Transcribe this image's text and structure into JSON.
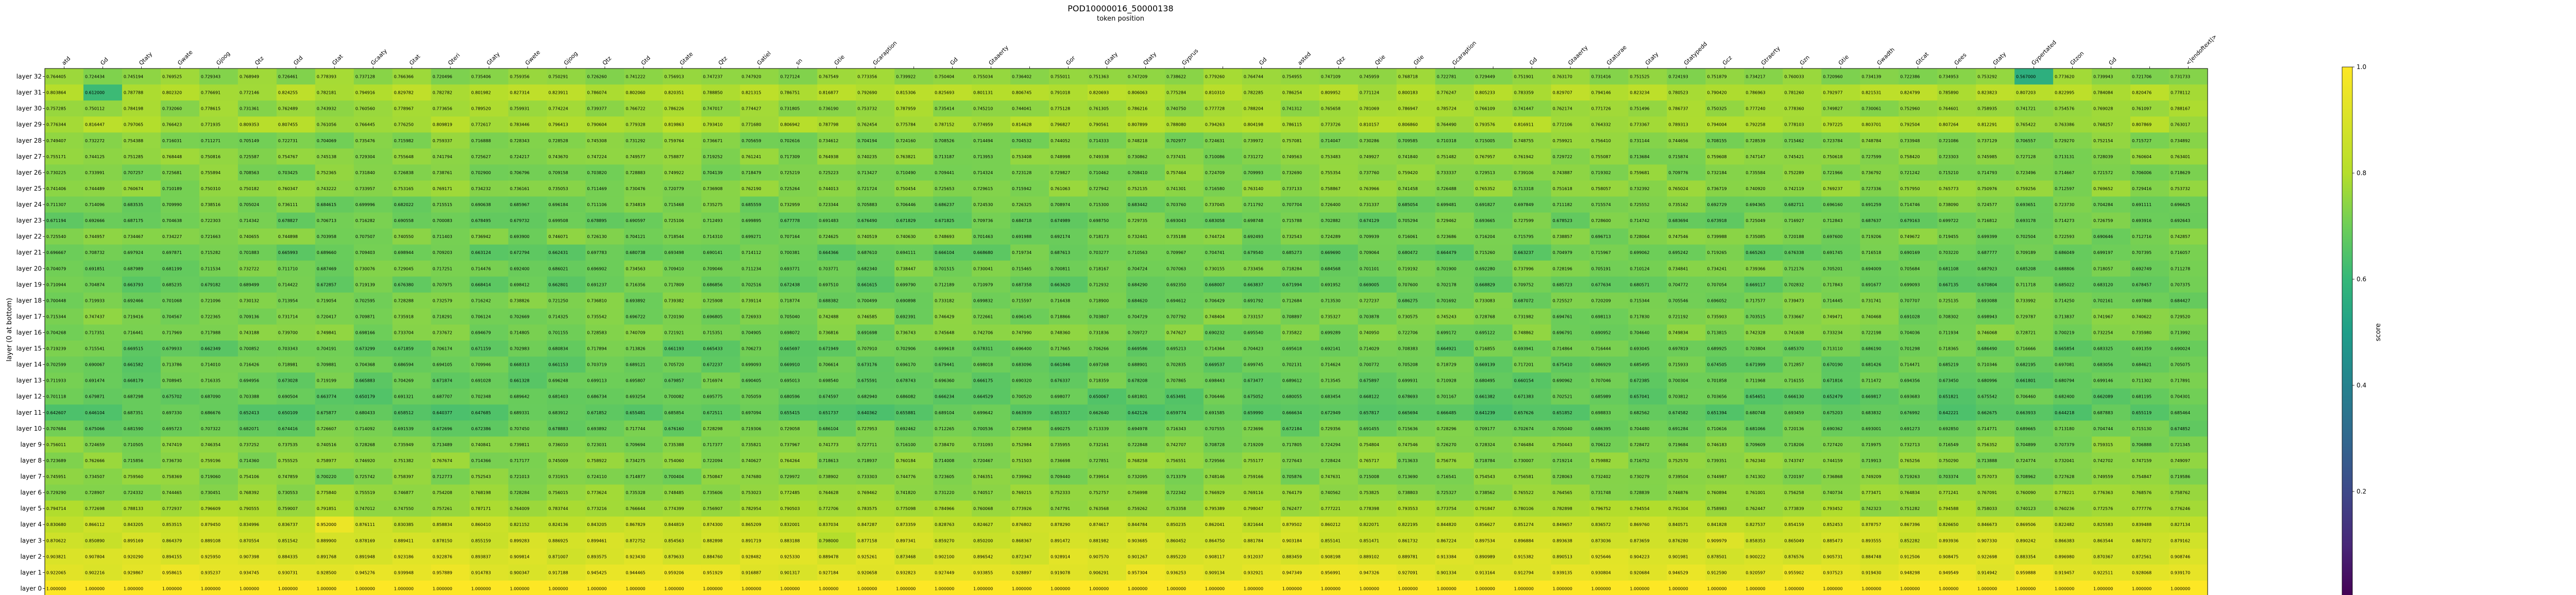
{
  "chart_data": {
    "type": "heatmap",
    "title": "POD10000016_50000138",
    "subtitle": "token position",
    "ylabel": "layer (0 at bottom)",
    "colorbar_label": "score",
    "colorbar_ticks": [
      "0.0",
      "0.2",
      "0.4",
      "0.6",
      "0.8",
      "1.0"
    ],
    "vlim": [
      0,
      1
    ],
    "colormap": "viridis",
    "x_tokens": [
      "atd",
      "Gd",
      "Qtaty",
      "Gwate",
      "Gjoog",
      "Qtz",
      "Gtd",
      "Gtat",
      "Gcaaty",
      "Gtat",
      "Qteri",
      "Gtaty",
      "Gwete",
      "Gjoog",
      "Qtz",
      "Gtd",
      "Gtate",
      "Qtz",
      "Gatiel",
      "sn",
      "Gtie",
      "Gcaraption",
      "",
      "Gd",
      "Gtaaerty",
      "",
      "Gor",
      "Gtaty",
      "Qtaty",
      "Gyprus",
      "",
      "Gd",
      "asted",
      "Qtz",
      "Qtie",
      "Gtie",
      "Gcaraption",
      "",
      "Gd",
      "Gtaaerty",
      "Gtaturae",
      "Gtaty",
      "Gtatypedd",
      "Gcz",
      "Gtraerty",
      "Gzn",
      "Gtie",
      "Gwadth",
      "Gtcat",
      "Gees",
      "Gtaty",
      "Gypertated",
      "Gtzon",
      "Gd",
      "",
      "<|endoftext|>"
    ],
    "layers": [
      "layer 32",
      "layer 31",
      "layer 30",
      "layer 29",
      "layer 28",
      "layer 27",
      "layer 26",
      "layer 25",
      "layer 24",
      "layer 23",
      "layer 22",
      "layer 21",
      "layer 20",
      "layer 19",
      "layer 18",
      "layer 17",
      "layer 16",
      "layer 15",
      "layer 14",
      "layer 13",
      "layer 12",
      "layer 11",
      "layer 10",
      "layer 9",
      "layer 8",
      "layer 7",
      "layer 6",
      "layer 5",
      "layer 4",
      "layer 3",
      "layer 2",
      "layer 1",
      "layer 0"
    ],
    "row_base": [
      0.75,
      0.8,
      0.76,
      0.79,
      0.73,
      0.74,
      0.73,
      0.74,
      0.71,
      0.7,
      0.72,
      0.69,
      0.71,
      0.69,
      0.71,
      0.72,
      0.72,
      0.69,
      0.69,
      0.69,
      0.68,
      0.67,
      0.7,
      0.73,
      0.74,
      0.73,
      0.75,
      0.77,
      0.85,
      0.88,
      0.9,
      0.93,
      1.0
    ],
    "highlighted_cells": [
      {
        "layer": "layer 32",
        "token_index": 51,
        "value": 0.567
      },
      {
        "layer": "layer 31",
        "token_index": 1,
        "value": 0.612
      },
      {
        "layer": "layer 3",
        "token_index": 20,
        "value": 0.798
      },
      {
        "layer": "layer 4",
        "token_index": 7,
        "value": 0.952
      }
    ]
  }
}
